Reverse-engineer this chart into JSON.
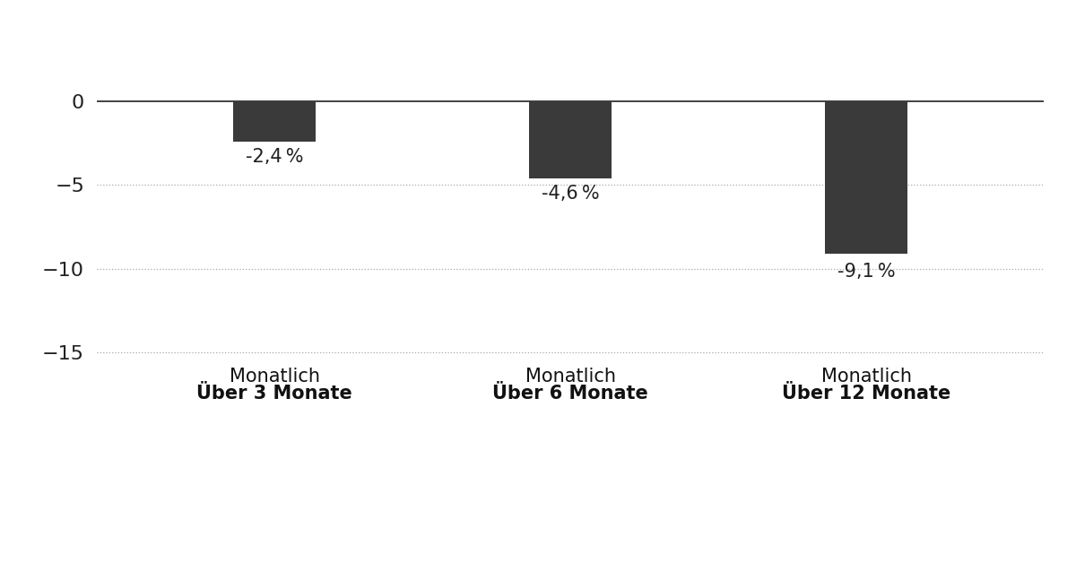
{
  "values": [
    -2.4,
    -4.6,
    -9.1
  ],
  "bar_color": "#3a3a3a",
  "bar_width": 0.28,
  "value_labels": [
    "-2,4 %",
    "-4,6 %",
    "-9,1 %"
  ],
  "yticks": [
    0,
    -5,
    -10,
    -15
  ],
  "ylim": [
    -17.5,
    2.0
  ],
  "xlim": [
    -0.6,
    2.6
  ],
  "background_color": "#ffffff",
  "grid_color": "#aaaaaa",
  "label_fontsize": 15,
  "value_fontsize": 15,
  "tick_fontsize": 16,
  "bold_lines": [
    "Über 3 Monate",
    "Über 6 Monate",
    "Über 12 Monate"
  ],
  "normal_lines": [
    "Monatlich",
    "Monatlich",
    "Monatlich"
  ]
}
